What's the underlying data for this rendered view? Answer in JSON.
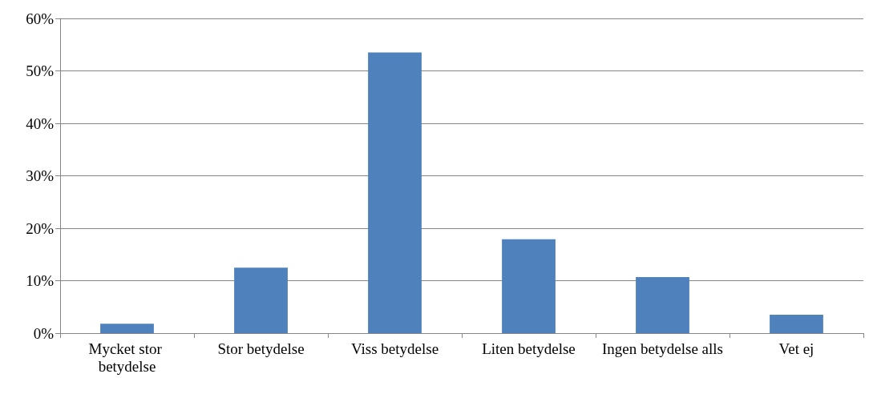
{
  "chart_data": {
    "type": "bar",
    "categories": [
      "Mycket stor betydelse",
      "Stor betydelse",
      "Viss betydelse",
      "Liten betydelse",
      "Ingen betydelse alls",
      "Vet ej"
    ],
    "values": [
      1.8,
      12.5,
      53.5,
      17.9,
      10.7,
      3.5
    ],
    "color": "#4f81bd",
    "ylim": [
      0,
      60
    ],
    "yticks": [
      {
        "value": 0,
        "label": "0%"
      },
      {
        "value": 10,
        "label": "10%"
      },
      {
        "value": 20,
        "label": "20%"
      },
      {
        "value": 30,
        "label": "30%"
      },
      {
        "value": 40,
        "label": "40%"
      },
      {
        "value": 50,
        "label": "50%"
      },
      {
        "value": 60,
        "label": "60%"
      }
    ],
    "grid": "y"
  }
}
